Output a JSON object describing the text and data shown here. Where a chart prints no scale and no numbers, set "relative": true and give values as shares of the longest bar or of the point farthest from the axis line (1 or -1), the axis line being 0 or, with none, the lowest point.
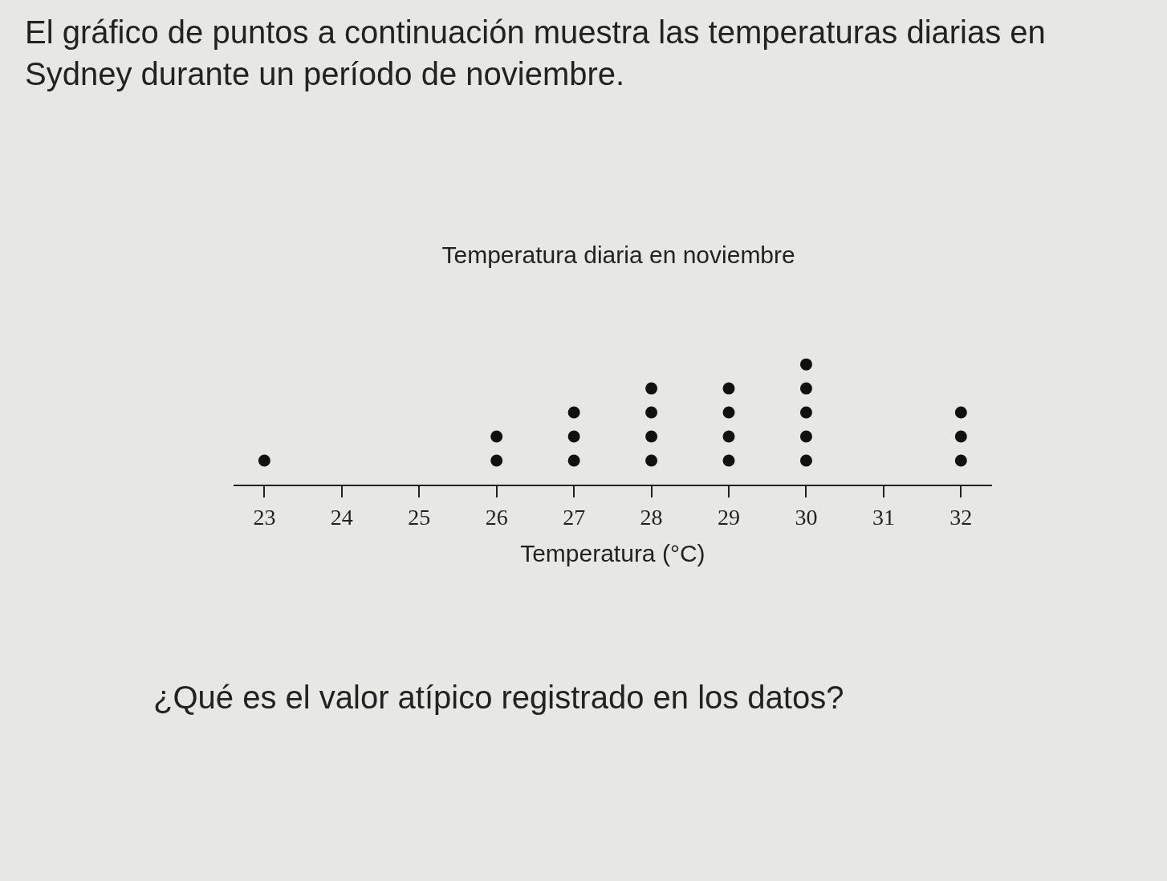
{
  "chart_data": {
    "type": "scatter",
    "title": "Temperatura diaria en noviembre",
    "xlabel": "Temperatura (°C)",
    "annotations": [
      "El gráfico de puntos a continuación muestra las temperaturas diarias en Sydney durante un período de noviembre.",
      "¿Qué es el valor atípico registrado en los datos?"
    ],
    "x": [
      23,
      26,
      26,
      27,
      27,
      27,
      28,
      28,
      28,
      28,
      29,
      29,
      29,
      29,
      30,
      30,
      30,
      30,
      30,
      32,
      32,
      32
    ],
    "values": [
      0.2,
      0.2,
      0.4,
      0.2,
      0.4,
      0.6,
      0.2,
      0.4,
      0.6,
      0.8,
      0.2,
      0.4,
      0.6,
      0.8,
      0.2,
      0.4,
      0.6,
      0.8,
      1,
      0.2,
      0.4,
      0.6
    ],
    "relative": true,
    "color": "#111111",
    "marker": "circle",
    "xlim": [
      22.6,
      32.4
    ],
    "xticks": [
      23,
      24,
      25,
      26,
      27,
      28,
      29,
      30,
      31,
      32
    ],
    "tick_labels": "x",
    "grid": false,
    "legend": false
  }
}
